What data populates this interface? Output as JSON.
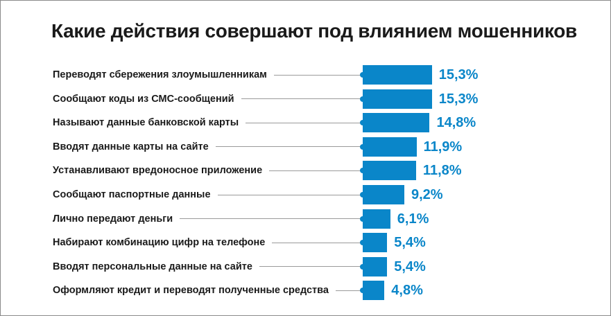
{
  "chart_data": {
    "type": "bar",
    "orientation": "horizontal",
    "title": "Какие действия совершают под влиянием мошенников",
    "categories": [
      "Переводят сбережения злоумышленникам",
      "Сообщают коды из СМС-сообщений",
      "Называют данные банковской карты",
      "Вводят данные карты на сайте",
      "Устанавливают вредоносное приложение",
      "Сообщают паспортные данные",
      "Лично передают деньги",
      "Набирают комбинацию цифр на телефоне",
      "Вводят персональные данные на сайте",
      "Оформляют кредит и переводят полученные средства"
    ],
    "values": [
      15.3,
      15.3,
      14.8,
      11.9,
      11.8,
      9.2,
      6.1,
      5.4,
      5.4,
      4.8
    ],
    "value_labels": [
      "15,3%",
      "15,3%",
      "14,8%",
      "11,9%",
      "11,8%",
      "9,2%",
      "6,1%",
      "5,4%",
      "5,4%",
      "4,8%"
    ],
    "xlabel": "",
    "ylabel": "",
    "legend": "none",
    "grid": false
  },
  "colors": {
    "bar": "#0a86c9",
    "value_text": "#0a86c9",
    "label_text": "#1a1a1a",
    "leader_line": "#9a9a9a"
  }
}
